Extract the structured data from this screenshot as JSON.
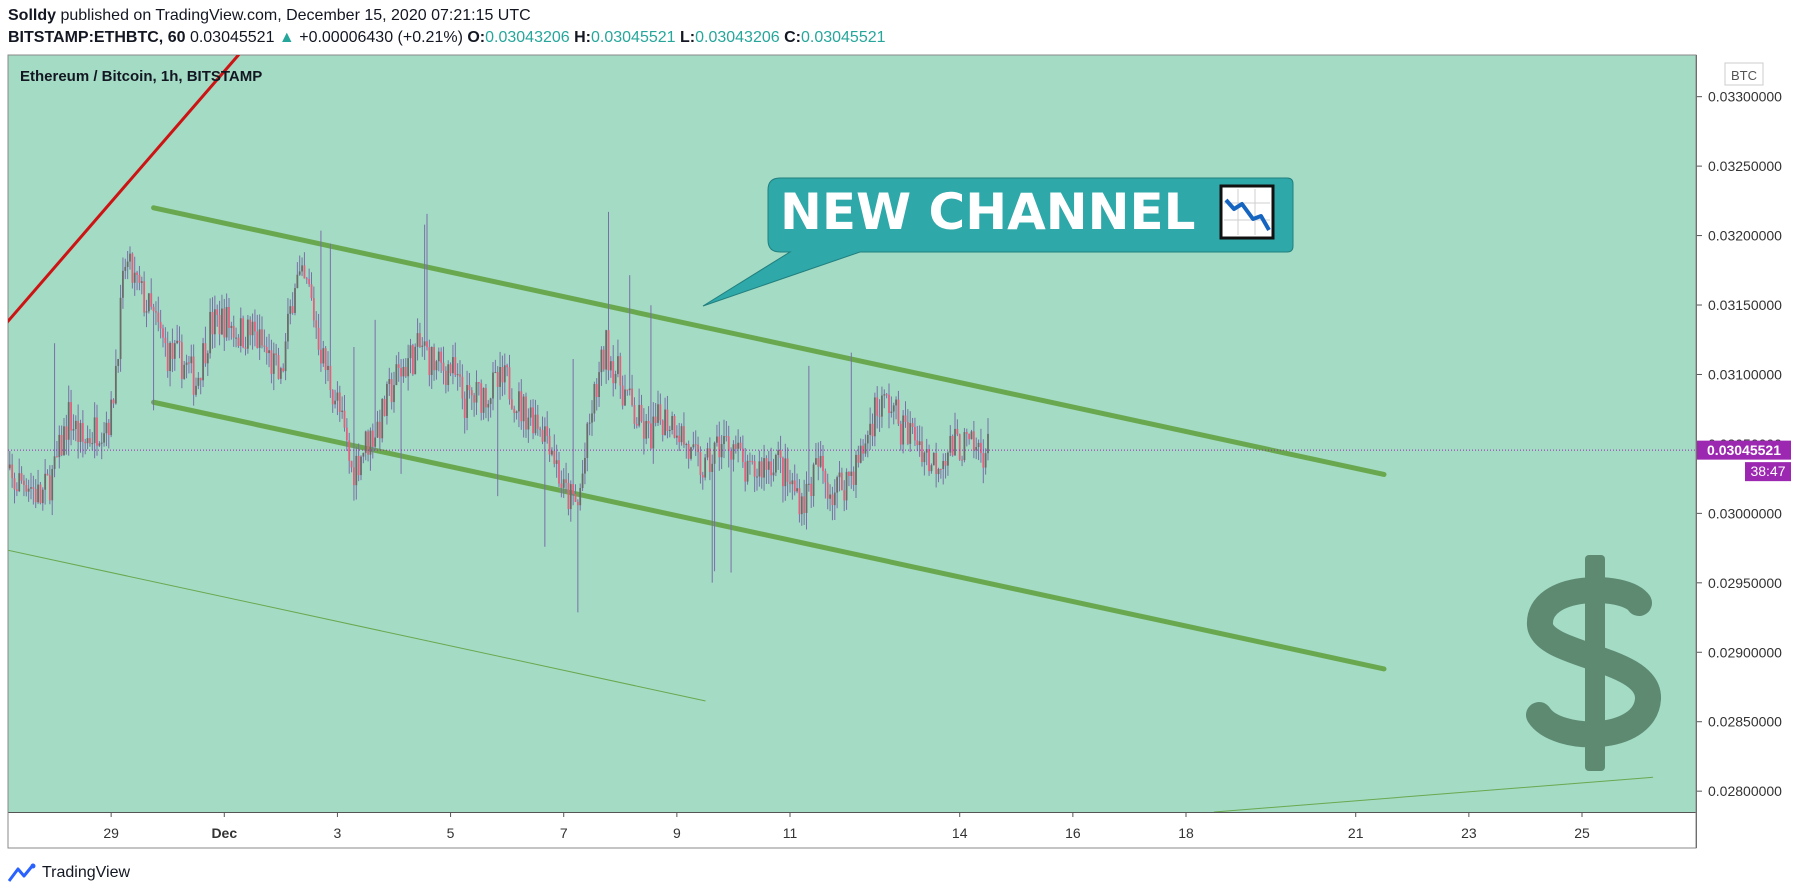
{
  "header": {
    "publisher": "Solldy",
    "published_text": "published on TradingView.com, December 15, 2020 07:21:15 UTC",
    "symbol": "BITSTAMP:ETHBTC, 60",
    "last": "0.03045521",
    "change": "+0.00006430 (+0.21%)",
    "o_label": "O:",
    "o_value": "0.03043206",
    "h_label": "H:",
    "h_value": "0.03045521",
    "l_label": "L:",
    "l_value": "0.03043206",
    "c_label": "C:",
    "c_value": "0.03045521"
  },
  "footer": {
    "brand": "TradingView"
  },
  "colors": {
    "background": "#a3dbc4",
    "channel": "#6aa84f",
    "trend": "#cc1414",
    "candle_up": "#6b6b6b",
    "candle_down": "#e0607e",
    "callout": "#2ea8a8",
    "price_tag": "#9c27b0",
    "dollar": "#5e8a72"
  },
  "chart_data": {
    "type": "candlestick",
    "title": "Ethereum / Bitcoin, 1h, BITSTAMP",
    "currency_label": "BTC",
    "current_price": "0.03045521",
    "countdown": "38:47",
    "annotation": "NEW CHANNEL",
    "annotation_icon": "chart-decreasing-icon",
    "watermark_icon": "dollar-sign-icon",
    "ylim": [
      0.02785,
      0.0333
    ],
    "y_ticks": [
      "0.02800000",
      "0.02850000",
      "0.02900000",
      "0.02950000",
      "0.03000000",
      "0.03050000",
      "0.03100000",
      "0.03150000",
      "0.03200000",
      "0.03250000",
      "0.03300000"
    ],
    "x_ticks": [
      "29",
      "Dec",
      "3",
      "5",
      "7",
      "9",
      "11",
      "14",
      "16",
      "18",
      "21",
      "23",
      "25"
    ],
    "price_keypoints": [
      [
        0,
        0.0304
      ],
      [
        1,
        0.0302
      ],
      [
        2,
        0.03025
      ],
      [
        3,
        0.0301
      ],
      [
        4,
        0.0303
      ],
      [
        5,
        0.0307
      ],
      [
        6,
        0.0305
      ],
      [
        7,
        0.03062
      ],
      [
        8,
        0.0307
      ],
      [
        9,
        0.0318
      ],
      [
        10,
        0.0316
      ],
      [
        11,
        0.0314
      ],
      [
        12,
        0.03115
      ],
      [
        13,
        0.0311
      ],
      [
        14,
        0.03095
      ],
      [
        15,
        0.03135
      ],
      [
        16,
        0.0314
      ],
      [
        17,
        0.0313
      ],
      [
        18,
        0.0313
      ],
      [
        19,
        0.03115
      ],
      [
        20,
        0.03095
      ],
      [
        21,
        0.0317
      ],
      [
        22,
        0.0316
      ],
      [
        23,
        0.0311
      ],
      [
        24,
        0.0308
      ],
      [
        25,
        0.0303
      ],
      [
        26,
        0.0305
      ],
      [
        27,
        0.03065
      ],
      [
        28,
        0.03095
      ],
      [
        29,
        0.0311
      ],
      [
        30,
        0.0312
      ],
      [
        31,
        0.03105
      ],
      [
        32,
        0.03105
      ],
      [
        33,
        0.0308
      ],
      [
        34,
        0.03085
      ],
      [
        35,
        0.0309
      ],
      [
        36,
        0.03095
      ],
      [
        37,
        0.03075
      ],
      [
        38,
        0.0307
      ],
      [
        39,
        0.03055
      ],
      [
        40,
        0.03015
      ],
      [
        41,
        0.03005
      ],
      [
        42,
        0.03075
      ],
      [
        43,
        0.0312
      ],
      [
        44,
        0.03095
      ],
      [
        45,
        0.0307
      ],
      [
        46,
        0.03055
      ],
      [
        47,
        0.0307
      ],
      [
        48,
        0.03065
      ],
      [
        49,
        0.0304
      ],
      [
        50,
        0.0303
      ],
      [
        51,
        0.0305
      ],
      [
        52,
        0.0305
      ],
      [
        53,
        0.03025
      ],
      [
        54,
        0.03035
      ],
      [
        55,
        0.0304
      ],
      [
        56,
        0.0302
      ],
      [
        57,
        0.0301
      ],
      [
        58,
        0.03035
      ],
      [
        59,
        0.03015
      ],
      [
        60,
        0.03025
      ],
      [
        61,
        0.0304
      ],
      [
        62,
        0.03075
      ],
      [
        63,
        0.0308
      ],
      [
        64,
        0.0306
      ],
      [
        65,
        0.03055
      ],
      [
        66,
        0.03035
      ],
      [
        67,
        0.03045
      ],
      [
        68,
        0.0305
      ],
      [
        69,
        0.03045
      ],
      [
        70,
        0.03046
      ]
    ],
    "keypoint_hours_apart": 6,
    "first_candle": "Nov 27",
    "trendlines": [
      {
        "name": "channel-upper",
        "from": [
          "Nov 29 18:00",
          0.0322
        ],
        "to": [
          "Dec 21 12:00",
          0.03028
        ]
      },
      {
        "name": "channel-lower",
        "from": [
          "Nov 29 18:00",
          0.0308
        ],
        "to": [
          "Dec 21 12:00",
          0.02888
        ]
      },
      {
        "name": "thin-lower",
        "from": [
          "Nov 27 00:00",
          0.02975
        ],
        "to": [
          "Dec 9 12:00",
          0.02865
        ]
      },
      {
        "name": "thin-bottom-right",
        "from": [
          "Dec 18 12:00",
          0.02785
        ],
        "to": [
          "Dec 26 06:00",
          0.0281
        ]
      },
      {
        "name": "red-trend",
        "from": [
          "Nov 27 00:00",
          0.0313
        ],
        "to": [
          "Dec 1 06:00",
          0.0333
        ]
      }
    ]
  }
}
